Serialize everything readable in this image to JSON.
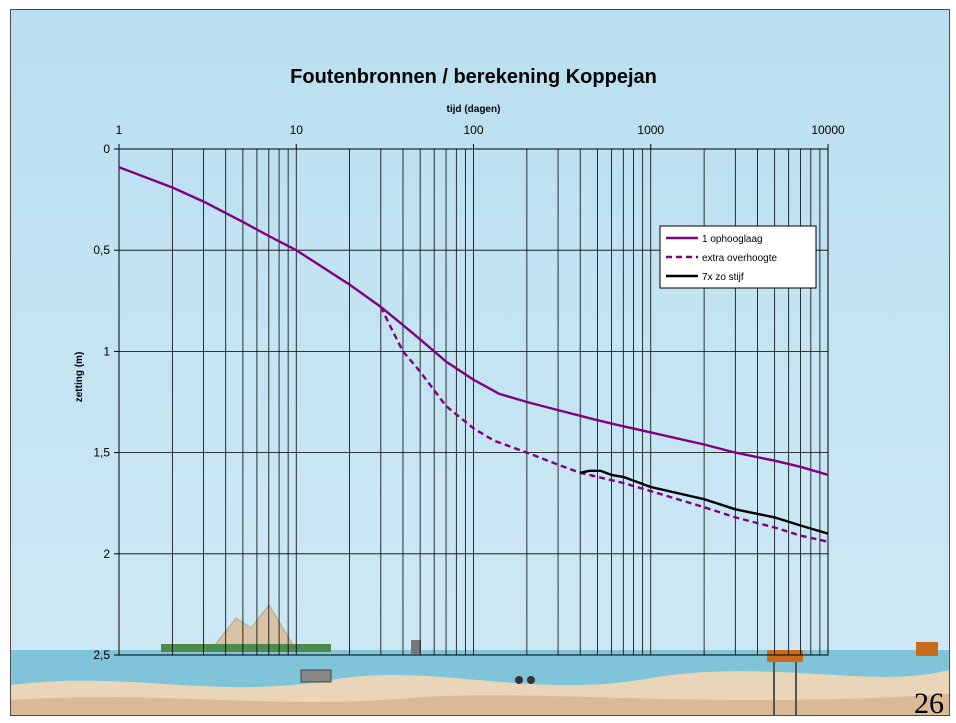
{
  "slide": {
    "number": "26"
  },
  "chart_data": {
    "type": "line",
    "title": "Foutenbronnen / berekening Koppejan",
    "xlabel": "tijd (dagen)",
    "ylabel": "zetting (m)",
    "x_scale": "log",
    "x_axis_position": "top",
    "y_inverted": true,
    "xlim": [
      1,
      10000
    ],
    "ylim": [
      0,
      2.5
    ],
    "x_ticks": [
      {
        "value": 1,
        "label": "1"
      },
      {
        "value": 10,
        "label": "10"
      },
      {
        "value": 100,
        "label": "100"
      },
      {
        "value": 1000,
        "label": "1000"
      },
      {
        "value": 10000,
        "label": "10000"
      }
    ],
    "y_ticks": [
      {
        "value": 0,
        "label": "0"
      },
      {
        "value": 0.5,
        "label": "0,5"
      },
      {
        "value": 1,
        "label": "1"
      },
      {
        "value": 1.5,
        "label": "1,5"
      },
      {
        "value": 2,
        "label": "2"
      },
      {
        "value": 2.5,
        "label": "2,5"
      }
    ],
    "grid": true,
    "legend_position": "right",
    "series": [
      {
        "name": "1 ophooglaag",
        "color": "#800080",
        "style": "solid",
        "points": [
          [
            1,
            0.09
          ],
          [
            2,
            0.19
          ],
          [
            3,
            0.26
          ],
          [
            5,
            0.36
          ],
          [
            7,
            0.43
          ],
          [
            10,
            0.5
          ],
          [
            15,
            0.6
          ],
          [
            20,
            0.67
          ],
          [
            30,
            0.78
          ],
          [
            40,
            0.87
          ],
          [
            50,
            0.94
          ],
          [
            70,
            1.05
          ],
          [
            100,
            1.14
          ],
          [
            140,
            1.21
          ],
          [
            200,
            1.25
          ],
          [
            300,
            1.29
          ],
          [
            500,
            1.34
          ],
          [
            700,
            1.37
          ],
          [
            1000,
            1.4
          ],
          [
            2000,
            1.46
          ],
          [
            3000,
            1.5
          ],
          [
            5000,
            1.54
          ],
          [
            7000,
            1.57
          ],
          [
            10000,
            1.61
          ]
        ]
      },
      {
        "name": "extra overhoogte",
        "color": "#800080",
        "style": "dashed",
        "points": [
          [
            30,
            0.78
          ],
          [
            35,
            0.9
          ],
          [
            40,
            1.0
          ],
          [
            50,
            1.1
          ],
          [
            70,
            1.27
          ],
          [
            100,
            1.38
          ],
          [
            130,
            1.44
          ],
          [
            200,
            1.5
          ],
          [
            300,
            1.56
          ],
          [
            400,
            1.6
          ],
          [
            700,
            1.65
          ],
          [
            1000,
            1.69
          ],
          [
            2000,
            1.77
          ],
          [
            3000,
            1.82
          ],
          [
            5000,
            1.87
          ],
          [
            7000,
            1.91
          ],
          [
            10000,
            1.94
          ]
        ]
      },
      {
        "name": "7x zo stijf",
        "color": "#000000",
        "style": "solid",
        "points": [
          [
            400,
            1.6
          ],
          [
            450,
            1.59
          ],
          [
            520,
            1.59
          ],
          [
            600,
            1.61
          ],
          [
            700,
            1.62
          ],
          [
            1000,
            1.67
          ],
          [
            2000,
            1.73
          ],
          [
            3000,
            1.78
          ],
          [
            5000,
            1.82
          ],
          [
            7000,
            1.86
          ],
          [
            10000,
            1.9
          ]
        ]
      }
    ]
  }
}
